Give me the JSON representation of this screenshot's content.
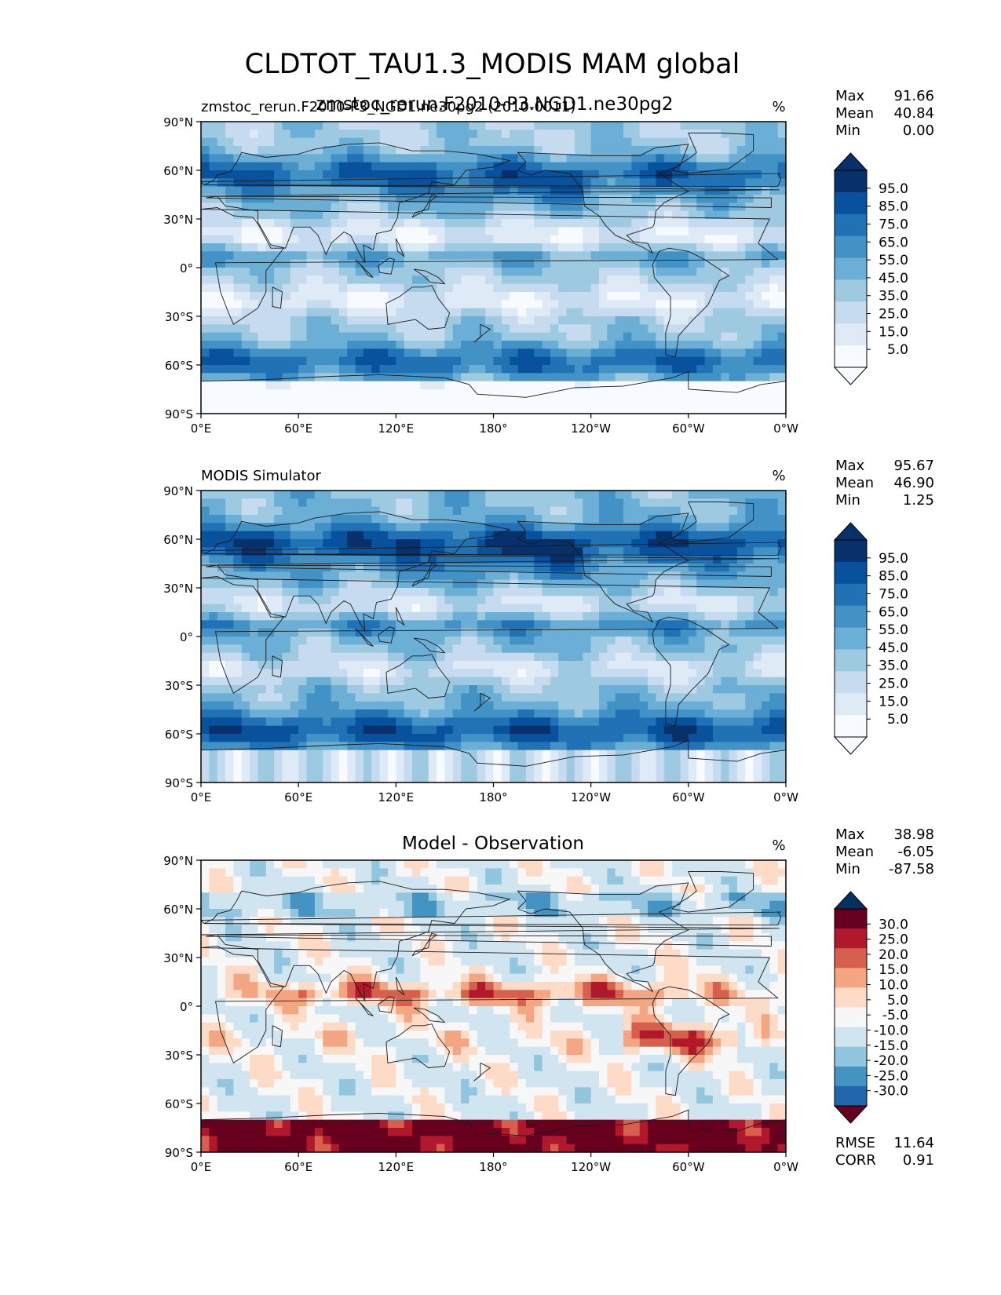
{
  "title": "CLDTOT_TAU1.3_MODIS MAM global",
  "panels": [
    {
      "left_label": "zmstoc_rerun.F2010-P3_NGD1.ne30pg2 (2010-0011)",
      "center_label": "zmstoc_rerun.F2010-P3.NGD1.ne30pg2",
      "units": "%",
      "stats": [
        {
          "label": "Max",
          "value": "91.66"
        },
        {
          "label": "Mean",
          "value": "40.84"
        },
        {
          "label": "Min",
          "value": "0.00"
        }
      ],
      "colorbar_ticks": [
        "95.0",
        "85.0",
        "75.0",
        "65.0",
        "55.0",
        "45.0",
        "35.0",
        "25.0",
        "15.0",
        "5.0"
      ],
      "field": "model"
    },
    {
      "left_label": "MODIS Simulator",
      "center_label": "",
      "units": "%",
      "stats": [
        {
          "label": "Max",
          "value": "95.67"
        },
        {
          "label": "Mean",
          "value": "46.90"
        },
        {
          "label": "Min",
          "value": "1.25"
        }
      ],
      "colorbar_ticks": [
        "95.0",
        "85.0",
        "75.0",
        "65.0",
        "55.0",
        "45.0",
        "35.0",
        "25.0",
        "15.0",
        "5.0"
      ],
      "field": "obs"
    },
    {
      "left_label": "",
      "center_label": "Model - Observation",
      "units": "%",
      "stats": [
        {
          "label": "Max",
          "value": "38.98"
        },
        {
          "label": "Mean",
          "value": "-6.05"
        },
        {
          "label": "Min",
          "value": "-87.58"
        }
      ],
      "colorbar_ticks": [
        "30.0",
        "25.0",
        "20.0",
        "15.0",
        "10.0",
        "5.0",
        "-5.0",
        "-10.0",
        "-15.0",
        "-20.0",
        "-25.0",
        "-30.0"
      ],
      "extra_stats": [
        {
          "label": "RMSE",
          "value": "11.64"
        },
        {
          "label": "CORR",
          "value": "0.91"
        }
      ],
      "field": "diff"
    }
  ],
  "axes": {
    "lat_ticks": [
      "90°N",
      "60°N",
      "30°N",
      "0°",
      "30°S",
      "60°S",
      "90°S"
    ],
    "lon_ticks": [
      "0°E",
      "60°E",
      "120°E",
      "180°",
      "120°W",
      "60°W",
      "0°W"
    ]
  },
  "colors": {
    "blues": [
      "#f7fbff",
      "#deebf7",
      "#c6dbef",
      "#9ecae1",
      "#6baed6",
      "#4292c6",
      "#2171b5",
      "#08519c",
      "#08306b"
    ],
    "rdbu": [
      "#67001f",
      "#b2182b",
      "#d6604d",
      "#f4a582",
      "#fddbc7",
      "#f7f7f7",
      "#d1e5f0",
      "#92c5de",
      "#4393c3",
      "#2166ac",
      "#053061"
    ]
  }
}
